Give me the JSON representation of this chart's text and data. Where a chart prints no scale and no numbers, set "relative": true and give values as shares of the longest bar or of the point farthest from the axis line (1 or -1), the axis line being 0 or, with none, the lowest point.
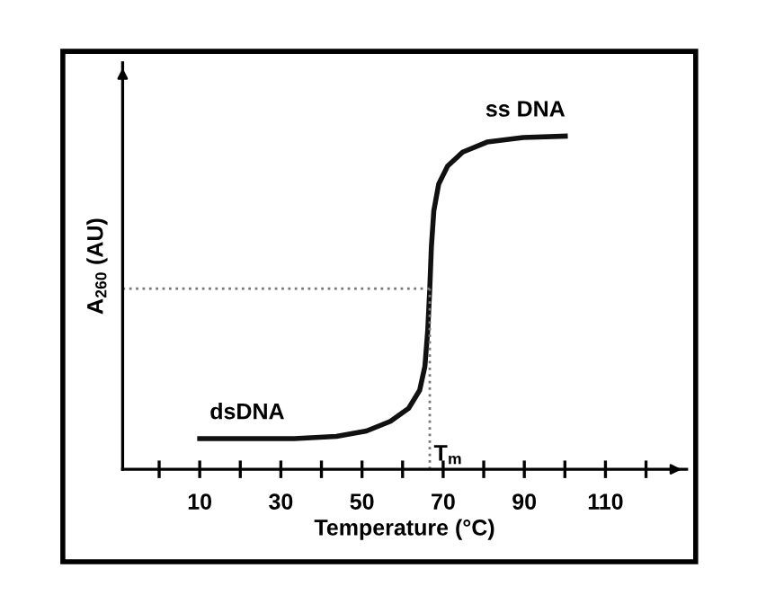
{
  "chart_data": {
    "type": "line",
    "relative": true,
    "xlabel": "Temperature (°C)",
    "ylabel": "A$_{260}$ (AU)",
    "xlim": [
      -9,
      130
    ],
    "xticks": [
      {
        "value": 0,
        "label": null
      },
      10,
      {
        "value": 20,
        "label": null
      },
      30,
      {
        "value": 40,
        "label": null
      },
      50,
      {
        "value": 60,
        "label": null
      },
      70,
      {
        "value": 80,
        "label": null
      },
      90,
      {
        "value": 100,
        "label": null
      },
      110,
      {
        "value": 120,
        "label": null
      }
    ],
    "series": [
      {
        "color": "#111111",
        "x": [
          10,
          33.3,
          43.7,
          51.1,
          57.0,
          61.5,
          64.2,
          65.5,
          66.2,
          66.7,
          67.1,
          67.7,
          68.9,
          71.1,
          74.8,
          80.8,
          89.7,
          100.1
        ],
        "values": [
          0.092,
          0.092,
          0.099,
          0.115,
          0.144,
          0.183,
          0.237,
          0.309,
          0.417,
          0.542,
          0.668,
          0.776,
          0.856,
          0.91,
          0.952,
          0.982,
          0.996,
          1.0
        ]
      }
    ],
    "ref_lines": [
      {
        "axis": "y",
        "value": 0.542,
        "line_style": "dotted",
        "color": "#777777"
      },
      {
        "axis": "x",
        "value": 66.7,
        "label": "T$_{m}$",
        "line_style": "dotted",
        "color": "#777777"
      }
    ],
    "annotations": [
      "dsDNA",
      "ss DNA"
    ],
    "grid": false,
    "marker": "none",
    "line_style": "solid"
  }
}
